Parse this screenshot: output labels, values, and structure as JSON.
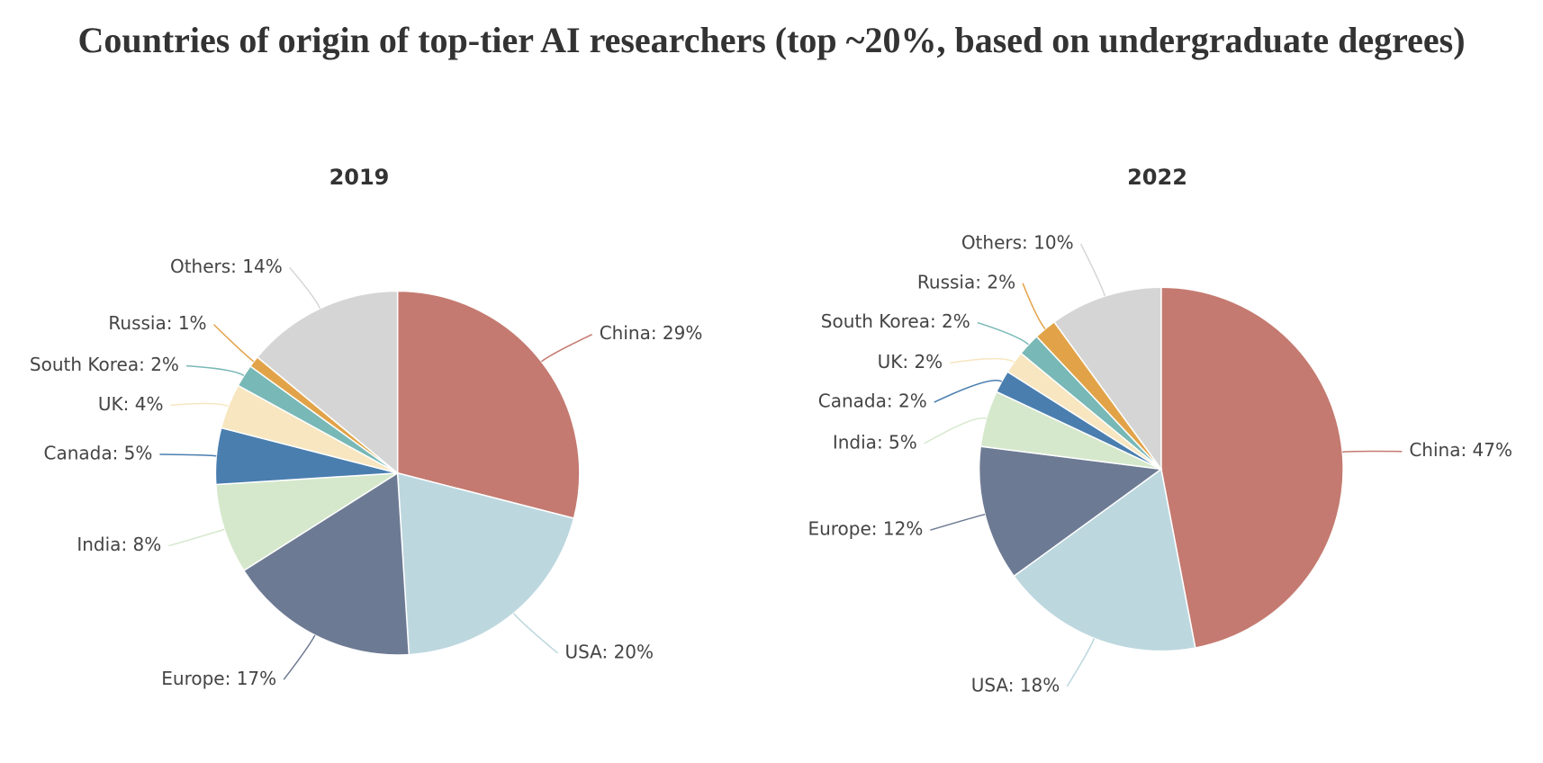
{
  "title": "Countries of origin of top-tier AI researchers (top ~20%, based on undergraduate degrees)",
  "chart_data": [
    {
      "type": "pie",
      "title": "2019",
      "values": [
        29,
        20,
        17,
        8,
        5,
        4,
        2,
        1,
        14
      ],
      "value_labels": [
        "China: 29%",
        "USA: 20%",
        "Europe: 17%",
        "India: 8%",
        "Canada: 5%",
        "UK: 4%",
        "South Korea: 2%",
        "Russia: 1%",
        "Others: 14%"
      ],
      "colors": [
        "#c47a70",
        "#bdd7df",
        "#6d7a93",
        "#d5e8cc",
        "#4a7eaf",
        "#f7e6c0",
        "#78b8b6",
        "#e2a348",
        "#d5d5d5"
      ]
    },
    {
      "type": "pie",
      "title": "2022",
      "values": [
        47,
        18,
        12,
        5,
        2,
        2,
        2,
        2,
        10
      ],
      "value_labels": [
        "China: 47%",
        "USA: 18%",
        "Europe: 12%",
        "India: 5%",
        "Canada: 2%",
        "UK: 2%",
        "South Korea: 2%",
        "Russia: 2%",
        "Others: 10%"
      ],
      "colors": [
        "#c47a70",
        "#bdd7df",
        "#6d7a93",
        "#d5e8cc",
        "#4a7eaf",
        "#f7e6c0",
        "#78b8b6",
        "#e2a348",
        "#d5d5d5"
      ]
    }
  ]
}
